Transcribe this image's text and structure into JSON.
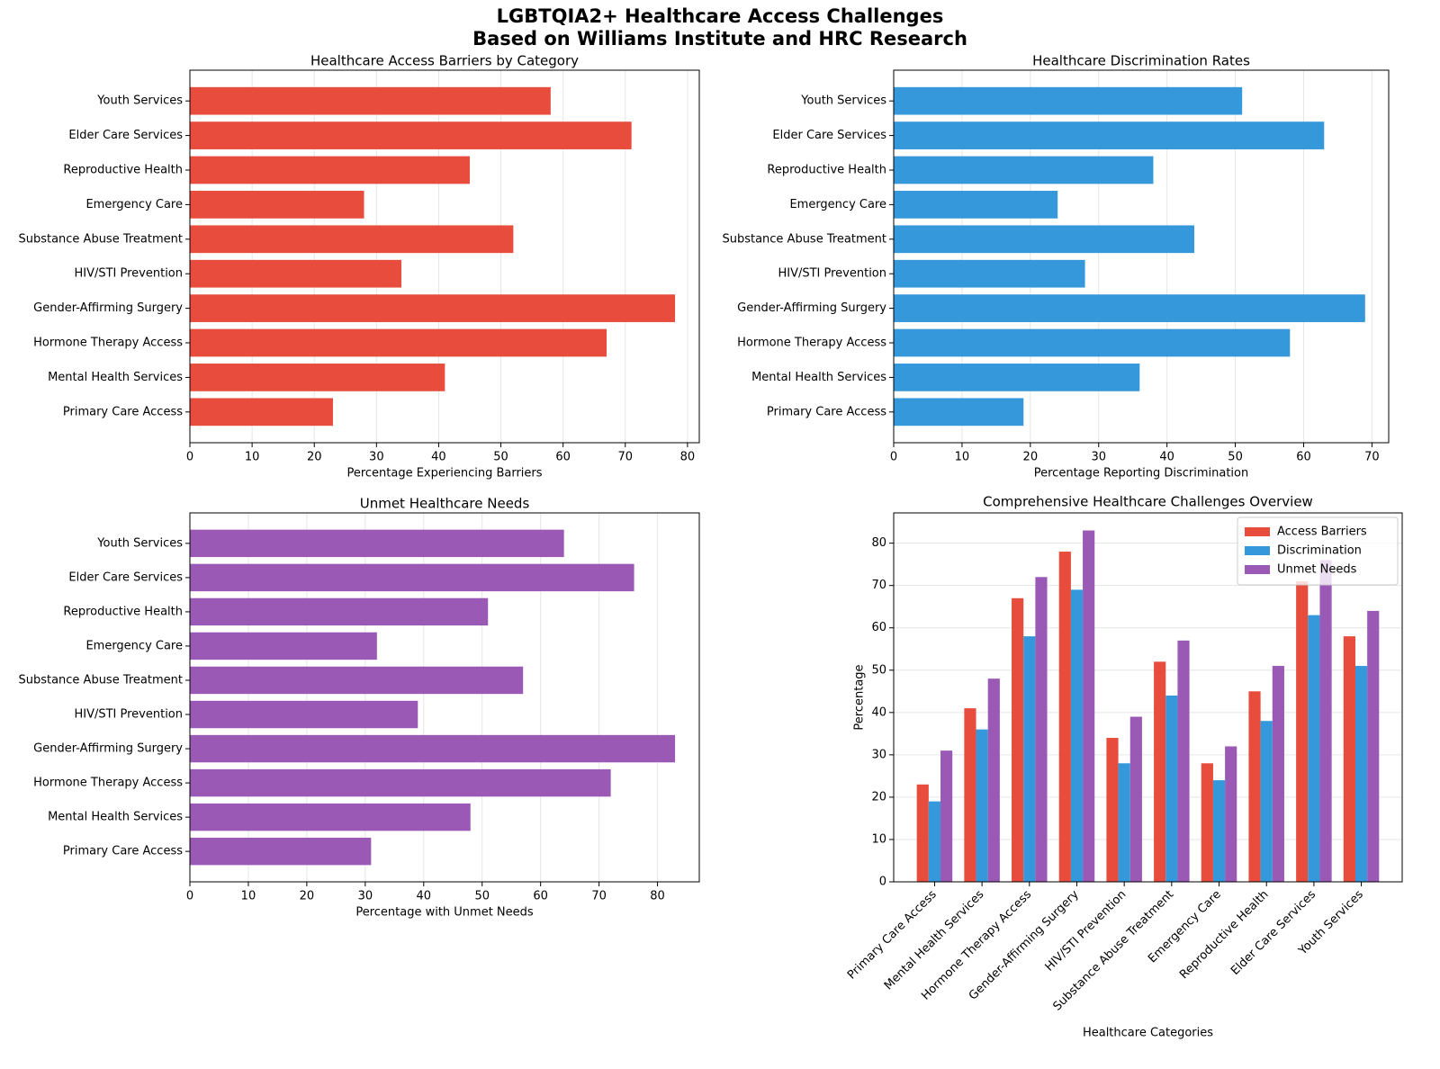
{
  "title": "LGBTQIA2+ Healthcare Access Challenges\nBased on Williams Institute and HRC Research",
  "chart_data": [
    {
      "type": "barh",
      "title": "Healthcare Access Barriers by Category",
      "xlabel": "Percentage Experiencing Barriers",
      "categories": [
        "Primary Care Access",
        "Mental Health Services",
        "Hormone Therapy Access",
        "Gender-Affirming Surgery",
        "HIV/STI Prevention",
        "Substance Abuse Treatment",
        "Emergency Care",
        "Reproductive Health",
        "Elder Care Services",
        "Youth Services"
      ],
      "values": [
        23,
        41,
        67,
        78,
        34,
        52,
        28,
        45,
        71,
        58
      ],
      "color": "#e74c3c",
      "xlim": [
        0,
        81.9
      ],
      "xticks": [
        0,
        10,
        20,
        30,
        40,
        50,
        60,
        70,
        80
      ],
      "grid": true
    },
    {
      "type": "barh",
      "title": "Healthcare Discrimination Rates",
      "xlabel": "Percentage Reporting Discrimination",
      "categories": [
        "Primary Care Access",
        "Mental Health Services",
        "Hormone Therapy Access",
        "Gender-Affirming Surgery",
        "HIV/STI Prevention",
        "Substance Abuse Treatment",
        "Emergency Care",
        "Reproductive Health",
        "Elder Care Services",
        "Youth Services"
      ],
      "values": [
        19,
        36,
        58,
        69,
        28,
        44,
        24,
        38,
        63,
        51
      ],
      "color": "#3498db",
      "xlim": [
        0,
        72.45
      ],
      "xticks": [
        0,
        10,
        20,
        30,
        40,
        50,
        60,
        70
      ],
      "grid": true
    },
    {
      "type": "barh",
      "title": "Unmet Healthcare Needs",
      "xlabel": "Percentage with Unmet Needs",
      "categories": [
        "Primary Care Access",
        "Mental Health Services",
        "Hormone Therapy Access",
        "Gender-Affirming Surgery",
        "HIV/STI Prevention",
        "Substance Abuse Treatment",
        "Emergency Care",
        "Reproductive Health",
        "Elder Care Services",
        "Youth Services"
      ],
      "values": [
        31,
        48,
        72,
        83,
        39,
        57,
        32,
        51,
        76,
        64
      ],
      "color": "#9b59b6",
      "xlim": [
        0,
        87.15
      ],
      "xticks": [
        0,
        10,
        20,
        30,
        40,
        50,
        60,
        70,
        80
      ],
      "grid": true
    },
    {
      "type": "bar",
      "title": "Comprehensive Healthcare Challenges Overview",
      "xlabel": "Healthcare Categories",
      "ylabel": "Percentage",
      "categories": [
        "Primary Care Access",
        "Mental Health Services",
        "Hormone Therapy Access",
        "Gender-Affirming Surgery",
        "HIV/STI Prevention",
        "Substance Abuse Treatment",
        "Emergency Care",
        "Reproductive Health",
        "Elder Care Services",
        "Youth Services"
      ],
      "series": [
        {
          "name": "Access Barriers",
          "color": "#e74c3c",
          "values": [
            23,
            41,
            67,
            78,
            34,
            52,
            28,
            45,
            71,
            58
          ]
        },
        {
          "name": "Discrimination",
          "color": "#3498db",
          "values": [
            19,
            36,
            58,
            69,
            28,
            44,
            24,
            38,
            63,
            51
          ]
        },
        {
          "name": "Unmet Needs",
          "color": "#9b59b6",
          "values": [
            31,
            48,
            72,
            83,
            39,
            57,
            32,
            51,
            76,
            64
          ]
        }
      ],
      "ylim": [
        0,
        87.15
      ],
      "yticks": [
        0,
        10,
        20,
        30,
        40,
        50,
        60,
        70,
        80
      ],
      "grid": true,
      "legend": "upper right"
    }
  ]
}
